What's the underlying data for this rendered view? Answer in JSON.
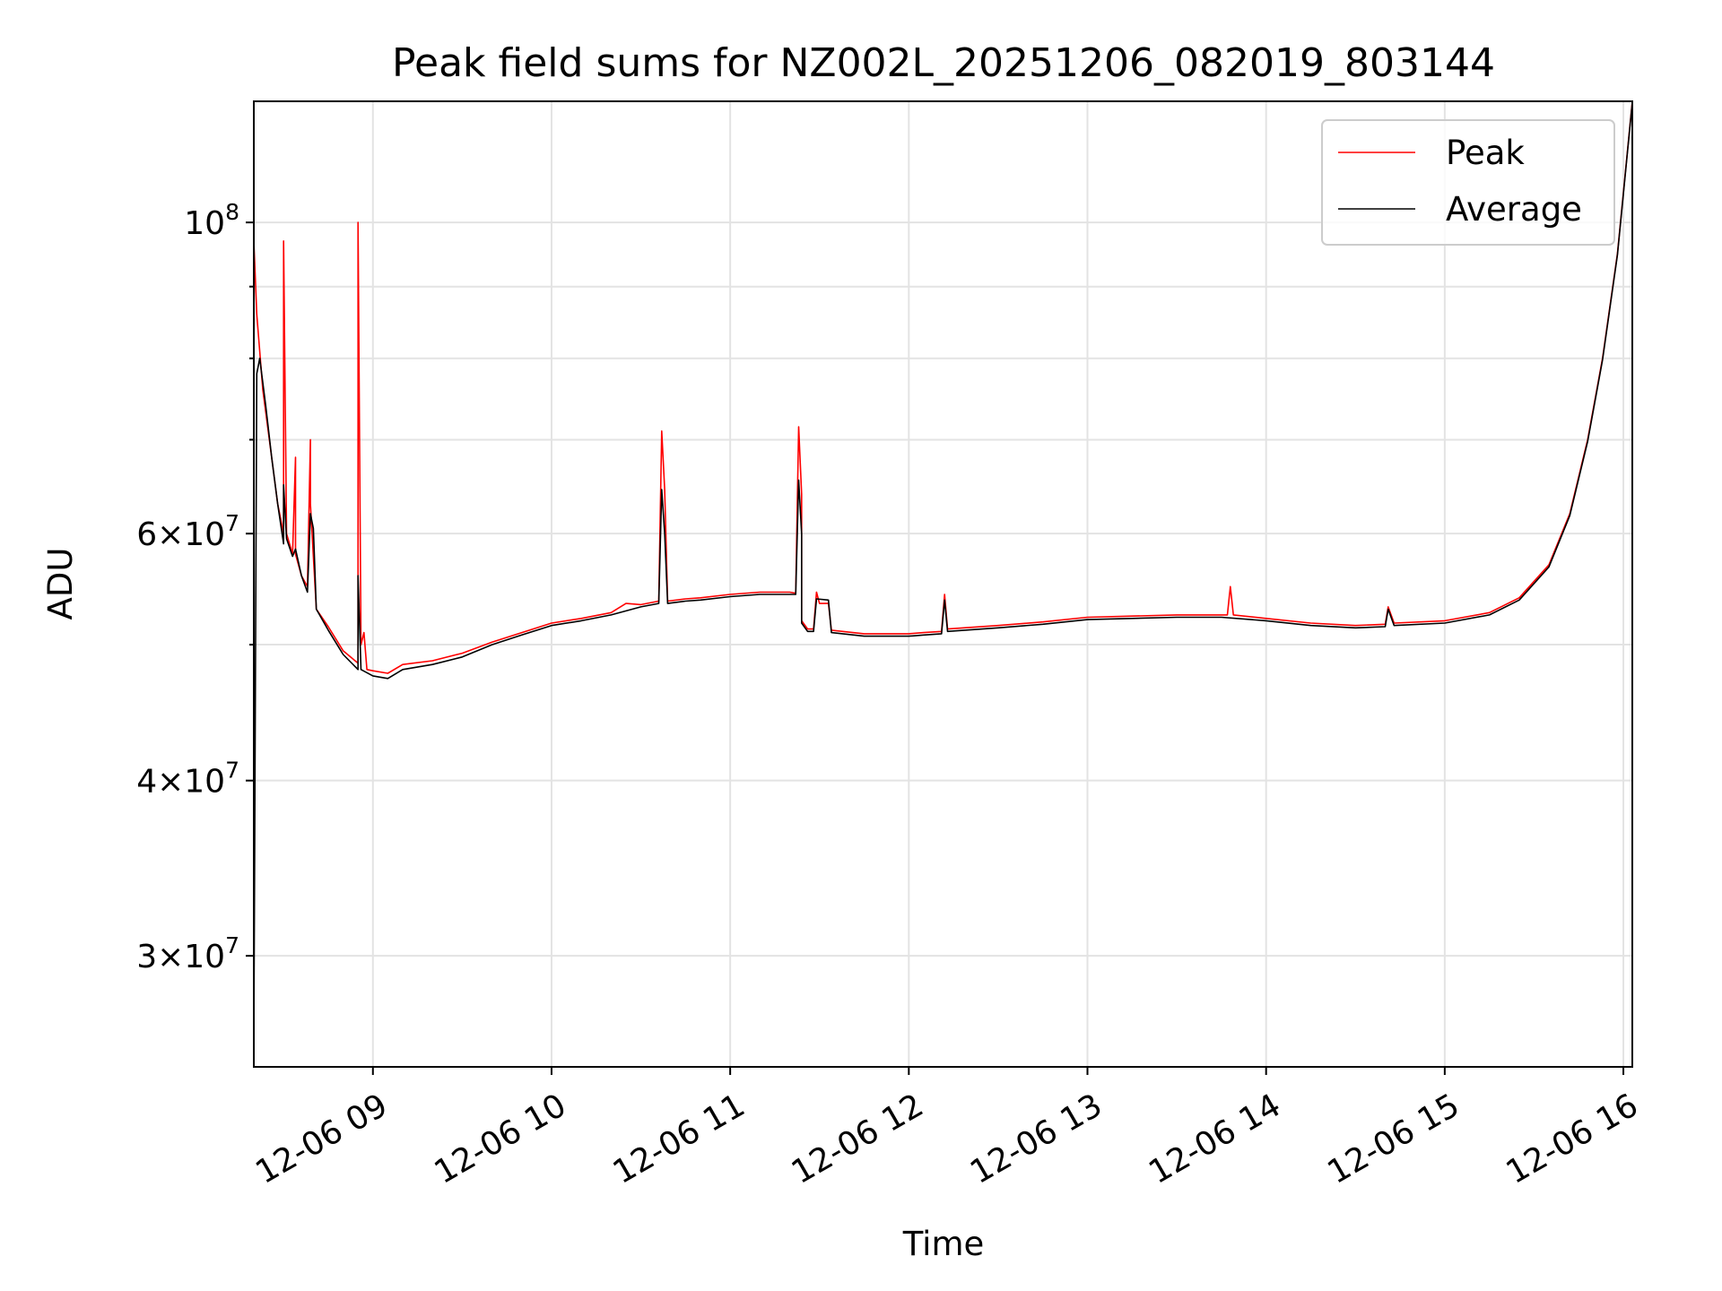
{
  "chart_data": {
    "type": "line",
    "title": "Peak field sums for NZ002L_20251206_082019_803144",
    "xlabel": "Time",
    "ylabel": "ADU",
    "yscale": "log",
    "xlim": [
      "2025-12-06 08:20",
      "2025-12-06 16:03"
    ],
    "ylim": [
      25000000,
      122000000
    ],
    "grid": true,
    "legend_position": "top-right",
    "x_ticks": [
      {
        "value": "2025-12-06 09:00",
        "label": "12-06 09"
      },
      {
        "value": "2025-12-06 10:00",
        "label": "12-06 10"
      },
      {
        "value": "2025-12-06 11:00",
        "label": "12-06 11"
      },
      {
        "value": "2025-12-06 12:00",
        "label": "12-06 12"
      },
      {
        "value": "2025-12-06 13:00",
        "label": "12-06 13"
      },
      {
        "value": "2025-12-06 14:00",
        "label": "12-06 14"
      },
      {
        "value": "2025-12-06 15:00",
        "label": "12-06 15"
      },
      {
        "value": "2025-12-06 16:00",
        "label": "12-06 16"
      }
    ],
    "y_ticks": [
      {
        "value": 100000000,
        "base": "10",
        "exp": "8"
      },
      {
        "value": 60000000,
        "base": "6×10",
        "exp": "7"
      },
      {
        "value": 40000000,
        "base": "4×10",
        "exp": "7"
      },
      {
        "value": 30000000,
        "base": "3×10",
        "exp": "7"
      }
    ],
    "y_minor_ticks": [
      90000000,
      80000000,
      70000000,
      50000000
    ],
    "series": [
      {
        "name": "Peak",
        "color": "#ff0000",
        "points": [
          [
            "2025-12-06 08:20",
            97000000
          ],
          [
            "2025-12-06 08:21",
            86000000
          ],
          [
            "2025-12-06 08:23",
            76000000
          ],
          [
            "2025-12-06 08:26",
            68000000
          ],
          [
            "2025-12-06 08:28",
            63000000
          ],
          [
            "2025-12-06 08:30",
            60000000
          ],
          [
            "2025-12-06 08:30",
            97000000
          ],
          [
            "2025-12-06 08:31",
            60000000
          ],
          [
            "2025-12-06 08:33",
            58000000
          ],
          [
            "2025-12-06 08:34",
            68000000
          ],
          [
            "2025-12-06 08:34",
            58000000
          ],
          [
            "2025-12-06 08:36",
            56000000
          ],
          [
            "2025-12-06 08:38",
            55000000
          ],
          [
            "2025-12-06 08:39",
            70000000
          ],
          [
            "2025-12-06 08:39",
            63000000
          ],
          [
            "2025-12-06 08:41",
            53000000
          ],
          [
            "2025-12-06 08:45",
            51500000
          ],
          [
            "2025-12-06 08:50",
            49500000
          ],
          [
            "2025-12-06 08:55",
            48500000
          ],
          [
            "2025-12-06 08:55",
            100000000
          ],
          [
            "2025-12-06 08:56",
            50000000
          ],
          [
            "2025-12-06 08:57",
            51000000
          ],
          [
            "2025-12-06 08:58",
            48000000
          ],
          [
            "2025-12-06 09:00",
            47900000
          ],
          [
            "2025-12-06 09:05",
            47700000
          ],
          [
            "2025-12-06 09:10",
            48400000
          ],
          [
            "2025-12-06 09:20",
            48700000
          ],
          [
            "2025-12-06 09:30",
            49300000
          ],
          [
            "2025-12-06 09:40",
            50200000
          ],
          [
            "2025-12-06 09:50",
            51000000
          ],
          [
            "2025-12-06 10:00",
            51800000
          ],
          [
            "2025-12-06 10:10",
            52200000
          ],
          [
            "2025-12-06 10:20",
            52700000
          ],
          [
            "2025-12-06 10:25",
            53500000
          ],
          [
            "2025-12-06 10:30",
            53400000
          ],
          [
            "2025-12-06 10:36",
            53700000
          ],
          [
            "2025-12-06 10:37",
            71000000
          ],
          [
            "2025-12-06 10:38",
            64500000
          ],
          [
            "2025-12-06 10:39",
            53700000
          ],
          [
            "2025-12-06 10:45",
            53900000
          ],
          [
            "2025-12-06 10:50",
            54000000
          ],
          [
            "2025-12-06 11:00",
            54300000
          ],
          [
            "2025-12-06 11:10",
            54500000
          ],
          [
            "2025-12-06 11:20",
            54500000
          ],
          [
            "2025-12-06 11:22",
            54400000
          ],
          [
            "2025-12-06 11:23",
            71500000
          ],
          [
            "2025-12-06 11:24",
            64000000
          ],
          [
            "2025-12-06 11:24",
            52000000
          ],
          [
            "2025-12-06 11:26",
            51300000
          ],
          [
            "2025-12-06 11:28",
            51300000
          ],
          [
            "2025-12-06 11:29",
            54500000
          ],
          [
            "2025-12-06 11:30",
            53500000
          ],
          [
            "2025-12-06 11:33",
            53500000
          ],
          [
            "2025-12-06 11:34",
            51200000
          ],
          [
            "2025-12-06 11:45",
            50900000
          ],
          [
            "2025-12-06 12:00",
            50900000
          ],
          [
            "2025-12-06 12:05",
            51000000
          ],
          [
            "2025-12-06 12:11",
            51100000
          ],
          [
            "2025-12-06 12:12",
            54300000
          ],
          [
            "2025-12-06 12:13",
            51300000
          ],
          [
            "2025-12-06 12:30",
            51600000
          ],
          [
            "2025-12-06 12:45",
            51900000
          ],
          [
            "2025-12-06 13:00",
            52300000
          ],
          [
            "2025-12-06 13:15",
            52400000
          ],
          [
            "2025-12-06 13:30",
            52500000
          ],
          [
            "2025-12-06 13:45",
            52500000
          ],
          [
            "2025-12-06 13:47",
            52500000
          ],
          [
            "2025-12-06 13:48",
            55000000
          ],
          [
            "2025-12-06 13:49",
            52500000
          ],
          [
            "2025-12-06 14:00",
            52200000
          ],
          [
            "2025-12-06 14:15",
            51800000
          ],
          [
            "2025-12-06 14:30",
            51600000
          ],
          [
            "2025-12-06 14:40",
            51700000
          ],
          [
            "2025-12-06 14:41",
            53200000
          ],
          [
            "2025-12-06 14:43",
            51800000
          ],
          [
            "2025-12-06 15:00",
            52000000
          ],
          [
            "2025-12-06 15:15",
            52700000
          ],
          [
            "2025-12-06 15:25",
            54000000
          ],
          [
            "2025-12-06 15:35",
            57000000
          ],
          [
            "2025-12-06 15:42",
            62000000
          ],
          [
            "2025-12-06 15:48",
            70000000
          ],
          [
            "2025-12-06 15:53",
            80000000
          ],
          [
            "2025-12-06 15:58",
            95000000
          ],
          [
            "2025-12-06 16:03",
            122000000
          ]
        ]
      },
      {
        "name": "Average",
        "color": "#000000",
        "points": [
          [
            "2025-12-06 08:20",
            26000000
          ],
          [
            "2025-12-06 08:21",
            78000000
          ],
          [
            "2025-12-06 08:22",
            80000000
          ],
          [
            "2025-12-06 08:24",
            74000000
          ],
          [
            "2025-12-06 08:26",
            68000000
          ],
          [
            "2025-12-06 08:28",
            63000000
          ],
          [
            "2025-12-06 08:30",
            59000000
          ],
          [
            "2025-12-06 08:30",
            65000000
          ],
          [
            "2025-12-06 08:31",
            59500000
          ],
          [
            "2025-12-06 08:33",
            57800000
          ],
          [
            "2025-12-06 08:34",
            58500000
          ],
          [
            "2025-12-06 08:36",
            56000000
          ],
          [
            "2025-12-06 08:38",
            54500000
          ],
          [
            "2025-12-06 08:39",
            62000000
          ],
          [
            "2025-12-06 08:40",
            60500000
          ],
          [
            "2025-12-06 08:41",
            53000000
          ],
          [
            "2025-12-06 08:45",
            51200000
          ],
          [
            "2025-12-06 08:50",
            49200000
          ],
          [
            "2025-12-06 08:55",
            48000000
          ],
          [
            "2025-12-06 08:55",
            56000000
          ],
          [
            "2025-12-06 08:56",
            48000000
          ],
          [
            "2025-12-06 09:00",
            47500000
          ],
          [
            "2025-12-06 09:05",
            47300000
          ],
          [
            "2025-12-06 09:10",
            48000000
          ],
          [
            "2025-12-06 09:20",
            48400000
          ],
          [
            "2025-12-06 09:30",
            49000000
          ],
          [
            "2025-12-06 09:40",
            50000000
          ],
          [
            "2025-12-06 09:50",
            50800000
          ],
          [
            "2025-12-06 10:00",
            51600000
          ],
          [
            "2025-12-06 10:10",
            52000000
          ],
          [
            "2025-12-06 10:20",
            52500000
          ],
          [
            "2025-12-06 10:30",
            53200000
          ],
          [
            "2025-12-06 10:36",
            53500000
          ],
          [
            "2025-12-06 10:37",
            64500000
          ],
          [
            "2025-12-06 10:38",
            60000000
          ],
          [
            "2025-12-06 10:39",
            53500000
          ],
          [
            "2025-12-06 10:45",
            53700000
          ],
          [
            "2025-12-06 10:50",
            53800000
          ],
          [
            "2025-12-06 11:00",
            54100000
          ],
          [
            "2025-12-06 11:10",
            54300000
          ],
          [
            "2025-12-06 11:22",
            54300000
          ],
          [
            "2025-12-06 11:23",
            65500000
          ],
          [
            "2025-12-06 11:24",
            60000000
          ],
          [
            "2025-12-06 11:24",
            51800000
          ],
          [
            "2025-12-06 11:26",
            51100000
          ],
          [
            "2025-12-06 11:28",
            51100000
          ],
          [
            "2025-12-06 11:29",
            53900000
          ],
          [
            "2025-12-06 11:33",
            53800000
          ],
          [
            "2025-12-06 11:34",
            51000000
          ],
          [
            "2025-12-06 11:45",
            50700000
          ],
          [
            "2025-12-06 12:00",
            50700000
          ],
          [
            "2025-12-06 12:05",
            50800000
          ],
          [
            "2025-12-06 12:11",
            50900000
          ],
          [
            "2025-12-06 12:12",
            53800000
          ],
          [
            "2025-12-06 12:13",
            51100000
          ],
          [
            "2025-12-06 12:30",
            51400000
          ],
          [
            "2025-12-06 12:45",
            51700000
          ],
          [
            "2025-12-06 13:00",
            52100000
          ],
          [
            "2025-12-06 13:15",
            52200000
          ],
          [
            "2025-12-06 13:30",
            52300000
          ],
          [
            "2025-12-06 13:45",
            52300000
          ],
          [
            "2025-12-06 14:00",
            52000000
          ],
          [
            "2025-12-06 14:15",
            51600000
          ],
          [
            "2025-12-06 14:30",
            51400000
          ],
          [
            "2025-12-06 14:40",
            51500000
          ],
          [
            "2025-12-06 14:41",
            53000000
          ],
          [
            "2025-12-06 14:43",
            51600000
          ],
          [
            "2025-12-06 15:00",
            51800000
          ],
          [
            "2025-12-06 15:15",
            52500000
          ],
          [
            "2025-12-06 15:25",
            53800000
          ],
          [
            "2025-12-06 15:35",
            56800000
          ],
          [
            "2025-12-06 15:42",
            61800000
          ],
          [
            "2025-12-06 15:48",
            69800000
          ],
          [
            "2025-12-06 15:53",
            79800000
          ],
          [
            "2025-12-06 15:58",
            94800000
          ],
          [
            "2025-12-06 16:03",
            121800000
          ]
        ]
      }
    ]
  }
}
